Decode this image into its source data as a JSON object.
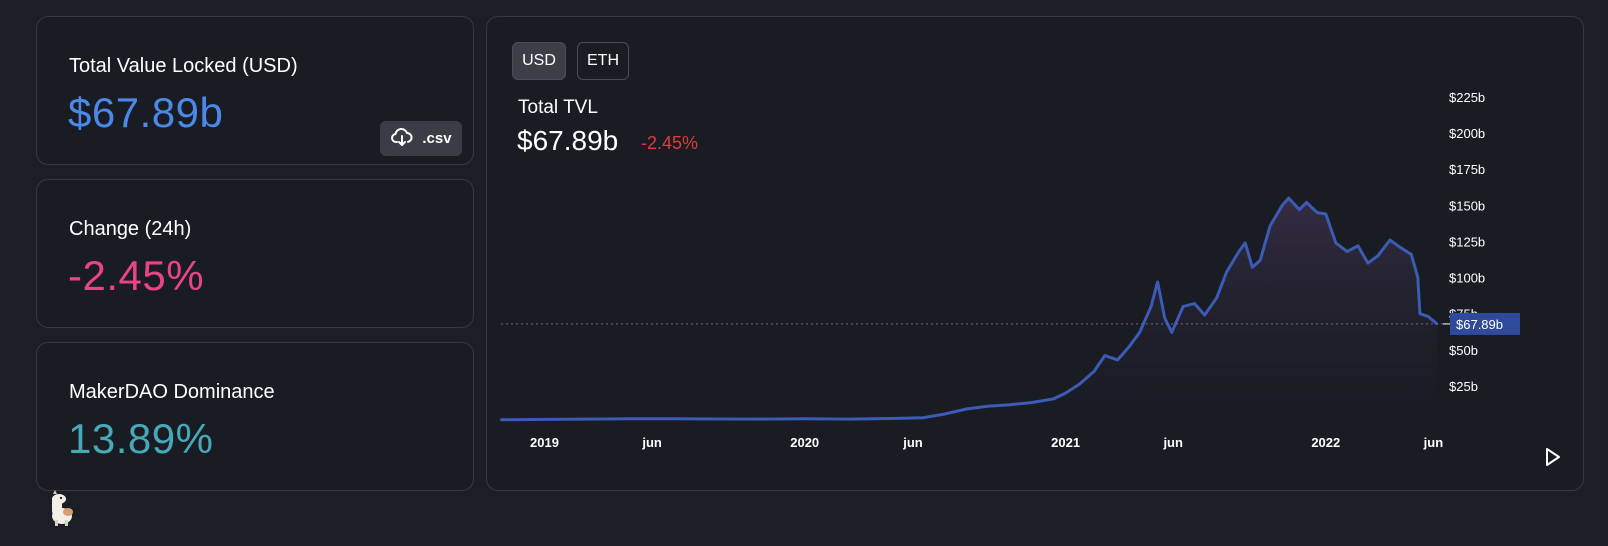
{
  "stats": {
    "tvl": {
      "label": "Total Value Locked (USD)",
      "value": "$67.89b",
      "csv_label": ".csv"
    },
    "change": {
      "label": "Change (24h)",
      "value": "-2.45%"
    },
    "dominance": {
      "label": "MakerDAO Dominance",
      "value": "13.89%"
    }
  },
  "chart": {
    "toggles": [
      {
        "label": "USD",
        "active": true
      },
      {
        "label": "ETH",
        "active": false
      }
    ],
    "title": "Total TVL",
    "value": "$67.89b",
    "change": "-2.45%",
    "play_icon": "play-icon"
  },
  "colors": {
    "tvl": "#4a89e8",
    "change": "#e84585",
    "dominance": "#46a9b8",
    "line": "#3b5bb5",
    "negative": "#e03b3b"
  },
  "chart_data": {
    "type": "area",
    "x_tick_labels": [
      "2019",
      "jun",
      "2020",
      "jun",
      "2021",
      "jun",
      "2022",
      "jun"
    ],
    "y_tick_labels": [
      "$25b",
      "$50b",
      "$75b",
      "$100b",
      "$125b",
      "$150b",
      "$175b",
      "$200b",
      "$225b"
    ],
    "ylim": [
      0,
      225
    ],
    "current_value_label": "$67.89b",
    "current_value": 67.89,
    "series": [
      {
        "values": [
          [
            "2018-11-01",
            1.5
          ],
          [
            "2019-01-01",
            1.8
          ],
          [
            "2019-03-01",
            2.0
          ],
          [
            "2019-05-01",
            2.2
          ],
          [
            "2019-07-01",
            2.3
          ],
          [
            "2019-09-01",
            2.1
          ],
          [
            "2019-11-01",
            2.0
          ],
          [
            "2020-01-01",
            2.2
          ],
          [
            "2020-03-01",
            2.0
          ],
          [
            "2020-05-01",
            2.4
          ],
          [
            "2020-06-15",
            3.0
          ],
          [
            "2020-07-15",
            5.5
          ],
          [
            "2020-08-15",
            9.0
          ],
          [
            "2020-09-15",
            11.0
          ],
          [
            "2020-10-15",
            12.0
          ],
          [
            "2020-11-15",
            13.5
          ],
          [
            "2020-12-15",
            16.0
          ],
          [
            "2021-01-01",
            20.0
          ],
          [
            "2021-01-20",
            26.0
          ],
          [
            "2021-02-10",
            35.0
          ],
          [
            "2021-02-25",
            46.0
          ],
          [
            "2021-03-15",
            43.0
          ],
          [
            "2021-03-31",
            52.0
          ],
          [
            "2021-04-15",
            62.0
          ],
          [
            "2021-05-01",
            80.0
          ],
          [
            "2021-05-10",
            97.0
          ],
          [
            "2021-05-20",
            72.0
          ],
          [
            "2021-05-30",
            62.0
          ],
          [
            "2021-06-15",
            80.0
          ],
          [
            "2021-07-01",
            82.0
          ],
          [
            "2021-07-15",
            74.0
          ],
          [
            "2021-08-01",
            86.0
          ],
          [
            "2021-08-15",
            104.0
          ],
          [
            "2021-09-01",
            118.0
          ],
          [
            "2021-09-10",
            124.0
          ],
          [
            "2021-09-20",
            107.0
          ],
          [
            "2021-10-01",
            112.0
          ],
          [
            "2021-10-15",
            136.0
          ],
          [
            "2021-11-01",
            150.0
          ],
          [
            "2021-11-10",
            155.0
          ],
          [
            "2021-11-25",
            147.0
          ],
          [
            "2021-12-05",
            152.0
          ],
          [
            "2021-12-20",
            145.0
          ],
          [
            "2022-01-01",
            144.0
          ],
          [
            "2022-01-15",
            124.0
          ],
          [
            "2022-01-31",
            118.0
          ],
          [
            "2022-02-15",
            122.0
          ],
          [
            "2022-03-01",
            110.0
          ],
          [
            "2022-03-15",
            115.0
          ],
          [
            "2022-04-01",
            126.0
          ],
          [
            "2022-04-15",
            121.0
          ],
          [
            "2022-05-01",
            116.0
          ],
          [
            "2022-05-10",
            100.0
          ],
          [
            "2022-05-13",
            75.0
          ],
          [
            "2022-05-25",
            73.0
          ],
          [
            "2022-06-01",
            70.0
          ],
          [
            "2022-06-06",
            67.89
          ]
        ]
      }
    ]
  }
}
